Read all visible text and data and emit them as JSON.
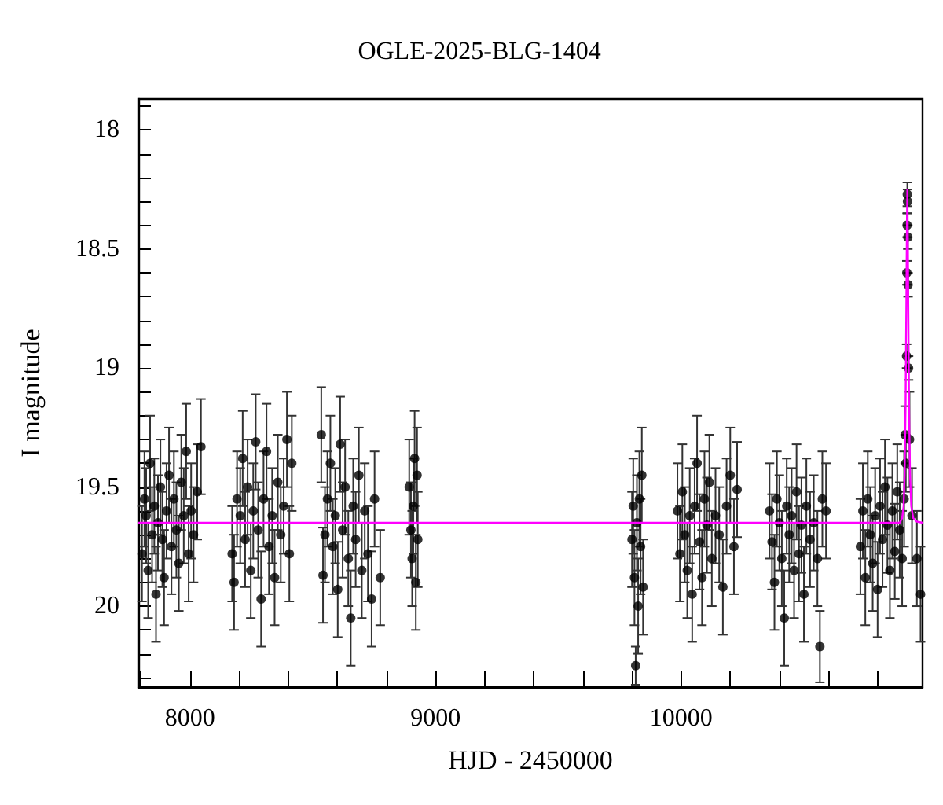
{
  "chart_data": {
    "type": "scatter",
    "title": "OGLE-2025-BLG-1404",
    "xlabel": "HJD - 2450000",
    "ylabel": "I magnitude",
    "xlim": [
      7790,
      10983
    ],
    "xticks": [
      {
        "value": 7800,
        "label": null
      },
      8000,
      {
        "value": 8200,
        "label": null
      },
      {
        "value": 8400,
        "label": null
      },
      {
        "value": 8600,
        "label": null
      },
      {
        "value": 8800,
        "label": null
      },
      9000,
      {
        "value": 9200,
        "label": null
      },
      {
        "value": 9400,
        "label": null
      },
      {
        "value": 9600,
        "label": null
      },
      {
        "value": 9800,
        "label": null
      },
      10000,
      {
        "value": 10200,
        "label": null
      },
      {
        "value": 10400,
        "label": null
      },
      {
        "value": 10600,
        "label": null
      },
      {
        "value": 10800,
        "label": null
      }
    ],
    "ylim": [
      20.34,
      17.87
    ],
    "yticks": [
      {
        "value": 17.9,
        "label": null
      },
      18,
      {
        "value": 18.1,
        "label": null
      },
      {
        "value": 18.2,
        "label": null
      },
      {
        "value": 18.3,
        "label": null
      },
      {
        "value": 18.4,
        "label": null
      },
      18.5,
      {
        "value": 18.6,
        "label": null
      },
      {
        "value": 18.7,
        "label": null
      },
      {
        "value": 18.8,
        "label": null
      },
      {
        "value": 18.9,
        "label": null
      },
      19,
      {
        "value": 19.1,
        "label": null
      },
      {
        "value": 19.2,
        "label": null
      },
      {
        "value": 19.3,
        "label": null
      },
      {
        "value": 19.4,
        "label": null
      },
      19.5,
      {
        "value": 19.6,
        "label": null
      },
      {
        "value": 19.7,
        "label": null
      },
      {
        "value": 19.8,
        "label": null
      },
      {
        "value": 19.9,
        "label": null
      },
      20,
      {
        "value": 20.1,
        "label": null
      },
      {
        "value": 20.2,
        "label": null
      },
      {
        "value": 20.3,
        "label": null
      }
    ],
    "grid": false,
    "marker": "circle",
    "series": [
      {
        "color": "#000000",
        "x": [
          7805,
          7815,
          7822,
          7830,
          7838,
          7846,
          7855,
          7862,
          7870,
          7880,
          7888,
          7895,
          7905,
          7915,
          7925,
          7935,
          7945,
          7955,
          7965,
          7975,
          7985,
          7995,
          8005,
          8015,
          8030,
          8045,
          8172,
          8180,
          8192,
          8205,
          8215,
          8225,
          8235,
          8248,
          8258,
          8268,
          8278,
          8290,
          8300,
          8312,
          8322,
          8335,
          8345,
          8358,
          8370,
          8382,
          8395,
          8405,
          8415,
          8535,
          8542,
          8550,
          8560,
          8572,
          8582,
          8592,
          8602,
          8612,
          8622,
          8632,
          8645,
          8655,
          8665,
          8675,
          8688,
          8700,
          8712,
          8725,
          8740,
          8752,
          8775,
          8893,
          8900,
          8905,
          8910,
          8915,
          8920,
          8925,
          8928,
          9800,
          9805,
          9810,
          9815,
          9820,
          9825,
          9830,
          9835,
          9840,
          9845,
          9985,
          9995,
          10005,
          10015,
          10025,
          10035,
          10045,
          10055,
          10065,
          10075,
          10085,
          10095,
          10105,
          10115,
          10125,
          10140,
          10155,
          10170,
          10185,
          10200,
          10215,
          10228,
          10360,
          10370,
          10380,
          10390,
          10400,
          10410,
          10420,
          10430,
          10440,
          10450,
          10460,
          10470,
          10480,
          10490,
          10500,
          10510,
          10525,
          10540,
          10555,
          10565,
          10575,
          10590,
          10730,
          10740,
          10750,
          10760,
          10770,
          10780,
          10790,
          10800,
          10810,
          10820,
          10830,
          10840,
          10850,
          10860,
          10870,
          10880,
          10890,
          10900,
          10908,
          10912,
          10915,
          10918,
          10919,
          10920,
          10921,
          10922,
          10923,
          10924,
          10926,
          10930,
          10940,
          10960,
          10975
        ],
        "values": [
          19.78,
          19.55,
          19.62,
          19.85,
          19.4,
          19.7,
          19.58,
          19.95,
          19.65,
          19.5,
          19.72,
          19.88,
          19.6,
          19.45,
          19.75,
          19.55,
          19.68,
          19.82,
          19.48,
          19.62,
          19.35,
          19.78,
          19.6,
          19.7,
          19.52,
          19.33,
          19.78,
          19.9,
          19.55,
          19.62,
          19.38,
          19.72,
          19.5,
          19.85,
          19.6,
          19.31,
          19.68,
          19.97,
          19.55,
          19.35,
          19.75,
          19.62,
          19.88,
          19.48,
          19.7,
          19.58,
          19.3,
          19.78,
          19.4,
          19.28,
          19.87,
          19.7,
          19.55,
          19.4,
          19.75,
          19.62,
          19.93,
          19.32,
          19.68,
          19.5,
          19.8,
          20.05,
          19.58,
          19.72,
          19.45,
          19.85,
          19.6,
          19.78,
          19.97,
          19.55,
          19.88,
          19.5,
          19.68,
          19.8,
          19.58,
          19.38,
          19.9,
          19.45,
          19.72,
          19.72,
          19.58,
          19.88,
          20.25,
          19.65,
          20.0,
          19.55,
          19.75,
          19.45,
          19.92,
          19.6,
          19.78,
          19.52,
          19.7,
          19.85,
          19.62,
          19.95,
          19.58,
          19.4,
          19.73,
          19.88,
          19.55,
          19.66,
          19.48,
          19.8,
          19.62,
          19.7,
          19.92,
          19.58,
          19.45,
          19.75,
          19.51,
          19.6,
          19.73,
          19.9,
          19.55,
          19.65,
          19.8,
          20.05,
          19.58,
          19.7,
          19.62,
          19.85,
          19.52,
          19.78,
          19.66,
          19.95,
          19.58,
          19.72,
          19.65,
          19.8,
          20.17,
          19.55,
          19.6,
          19.75,
          19.6,
          19.88,
          19.55,
          19.7,
          19.82,
          19.62,
          19.93,
          19.58,
          19.72,
          19.5,
          19.66,
          19.85,
          19.6,
          19.77,
          19.52,
          19.68,
          19.8,
          19.55,
          19.28,
          19.4,
          18.95,
          18.6,
          18.4,
          18.27,
          18.3,
          18.45,
          18.65,
          19.0,
          19.3,
          19.62,
          19.8,
          19.95
        ],
        "errors": [
          0.2,
          0.2,
          0.2,
          0.2,
          0.2,
          0.2,
          0.2,
          0.2,
          0.2,
          0.2,
          0.2,
          0.2,
          0.2,
          0.2,
          0.2,
          0.2,
          0.2,
          0.2,
          0.2,
          0.2,
          0.2,
          0.2,
          0.2,
          0.2,
          0.2,
          0.2,
          0.2,
          0.2,
          0.2,
          0.2,
          0.2,
          0.2,
          0.2,
          0.2,
          0.2,
          0.2,
          0.2,
          0.2,
          0.2,
          0.2,
          0.2,
          0.2,
          0.2,
          0.2,
          0.2,
          0.2,
          0.2,
          0.2,
          0.2,
          0.2,
          0.2,
          0.2,
          0.2,
          0.2,
          0.2,
          0.2,
          0.2,
          0.2,
          0.2,
          0.2,
          0.2,
          0.2,
          0.2,
          0.2,
          0.2,
          0.2,
          0.2,
          0.2,
          0.2,
          0.2,
          0.2,
          0.2,
          0.2,
          0.2,
          0.2,
          0.2,
          0.2,
          0.2,
          0.2,
          0.2,
          0.2,
          0.2,
          0.08,
          0.2,
          0.2,
          0.2,
          0.2,
          0.2,
          0.2,
          0.2,
          0.2,
          0.2,
          0.2,
          0.2,
          0.2,
          0.2,
          0.2,
          0.2,
          0.2,
          0.2,
          0.2,
          0.2,
          0.2,
          0.2,
          0.2,
          0.2,
          0.2,
          0.2,
          0.2,
          0.2,
          0.2,
          0.2,
          0.2,
          0.2,
          0.2,
          0.2,
          0.2,
          0.2,
          0.2,
          0.2,
          0.2,
          0.2,
          0.2,
          0.2,
          0.2,
          0.2,
          0.2,
          0.2,
          0.2,
          0.2,
          0.15,
          0.2,
          0.2,
          0.2,
          0.2,
          0.2,
          0.2,
          0.2,
          0.2,
          0.2,
          0.2,
          0.2,
          0.2,
          0.2,
          0.2,
          0.2,
          0.2,
          0.2,
          0.2,
          0.2,
          0.2,
          0.2,
          0.12,
          0.12,
          0.05,
          0.05,
          0.05,
          0.05,
          0.05,
          0.05,
          0.05,
          0.05,
          0.2,
          0.2,
          0.2,
          0.2
        ]
      },
      {
        "type": "line",
        "color": "#ff00ff",
        "marker": "none",
        "line_style": "solid",
        "x": [
          7790,
          10890,
          10900,
          10906,
          10910,
          10914,
          10917,
          10919,
          10921,
          10923,
          10925,
          10928,
          10932,
          10937,
          10945,
          10960,
          10983
        ],
        "values": [
          19.65,
          19.65,
          19.63,
          19.58,
          19.45,
          19.15,
          18.75,
          18.45,
          18.25,
          18.45,
          18.75,
          19.15,
          19.45,
          19.58,
          19.63,
          19.645,
          19.65
        ]
      }
    ]
  }
}
